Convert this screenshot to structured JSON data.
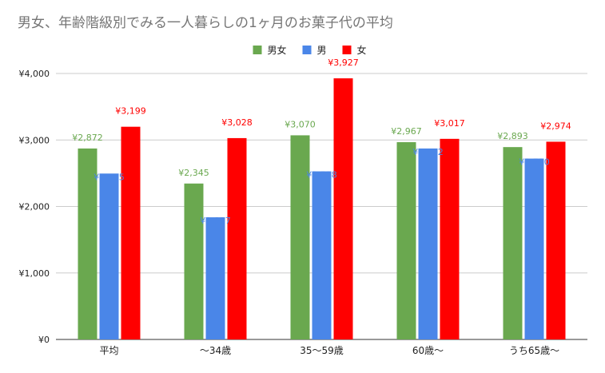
{
  "chart_data": {
    "type": "bar",
    "title": "男女、年齢階級別でみる一人暮らしの1ヶ月のお菓子代の平均",
    "xlabel": "",
    "ylabel": "",
    "ylim": [
      0,
      4000
    ],
    "yticks": [
      0,
      1000,
      2000,
      3000,
      4000
    ],
    "ytick_labels": [
      "¥0",
      "¥1,000",
      "¥2,000",
      "¥3,000",
      "¥4,000"
    ],
    "categories": [
      "平均",
      "〜34歳",
      "35〜59歳",
      "60歳〜",
      "うち65歳〜"
    ],
    "legend_position": "top-center",
    "grid": true,
    "series": [
      {
        "name": "男女",
        "color": "#6aa84f",
        "values": [
          2872,
          2345,
          3070,
          2967,
          2893
        ],
        "labels": [
          "¥2,872",
          "¥2,345",
          "¥3,070",
          "¥2,967",
          "¥2,893"
        ]
      },
      {
        "name": "男",
        "color": "#4a86e8",
        "values": [
          2495,
          1837,
          2528,
          2872,
          2720
        ],
        "labels": [
          "¥2,495",
          "¥1,837",
          "¥2,528",
          "¥2,872",
          "¥2,720"
        ]
      },
      {
        "name": "女",
        "color": "#ff0000",
        "values": [
          3199,
          3028,
          3927,
          3017,
          2974
        ],
        "labels": [
          "¥3,199",
          "¥3,028",
          "¥3,927",
          "¥3,017",
          "¥2,974"
        ]
      }
    ]
  }
}
